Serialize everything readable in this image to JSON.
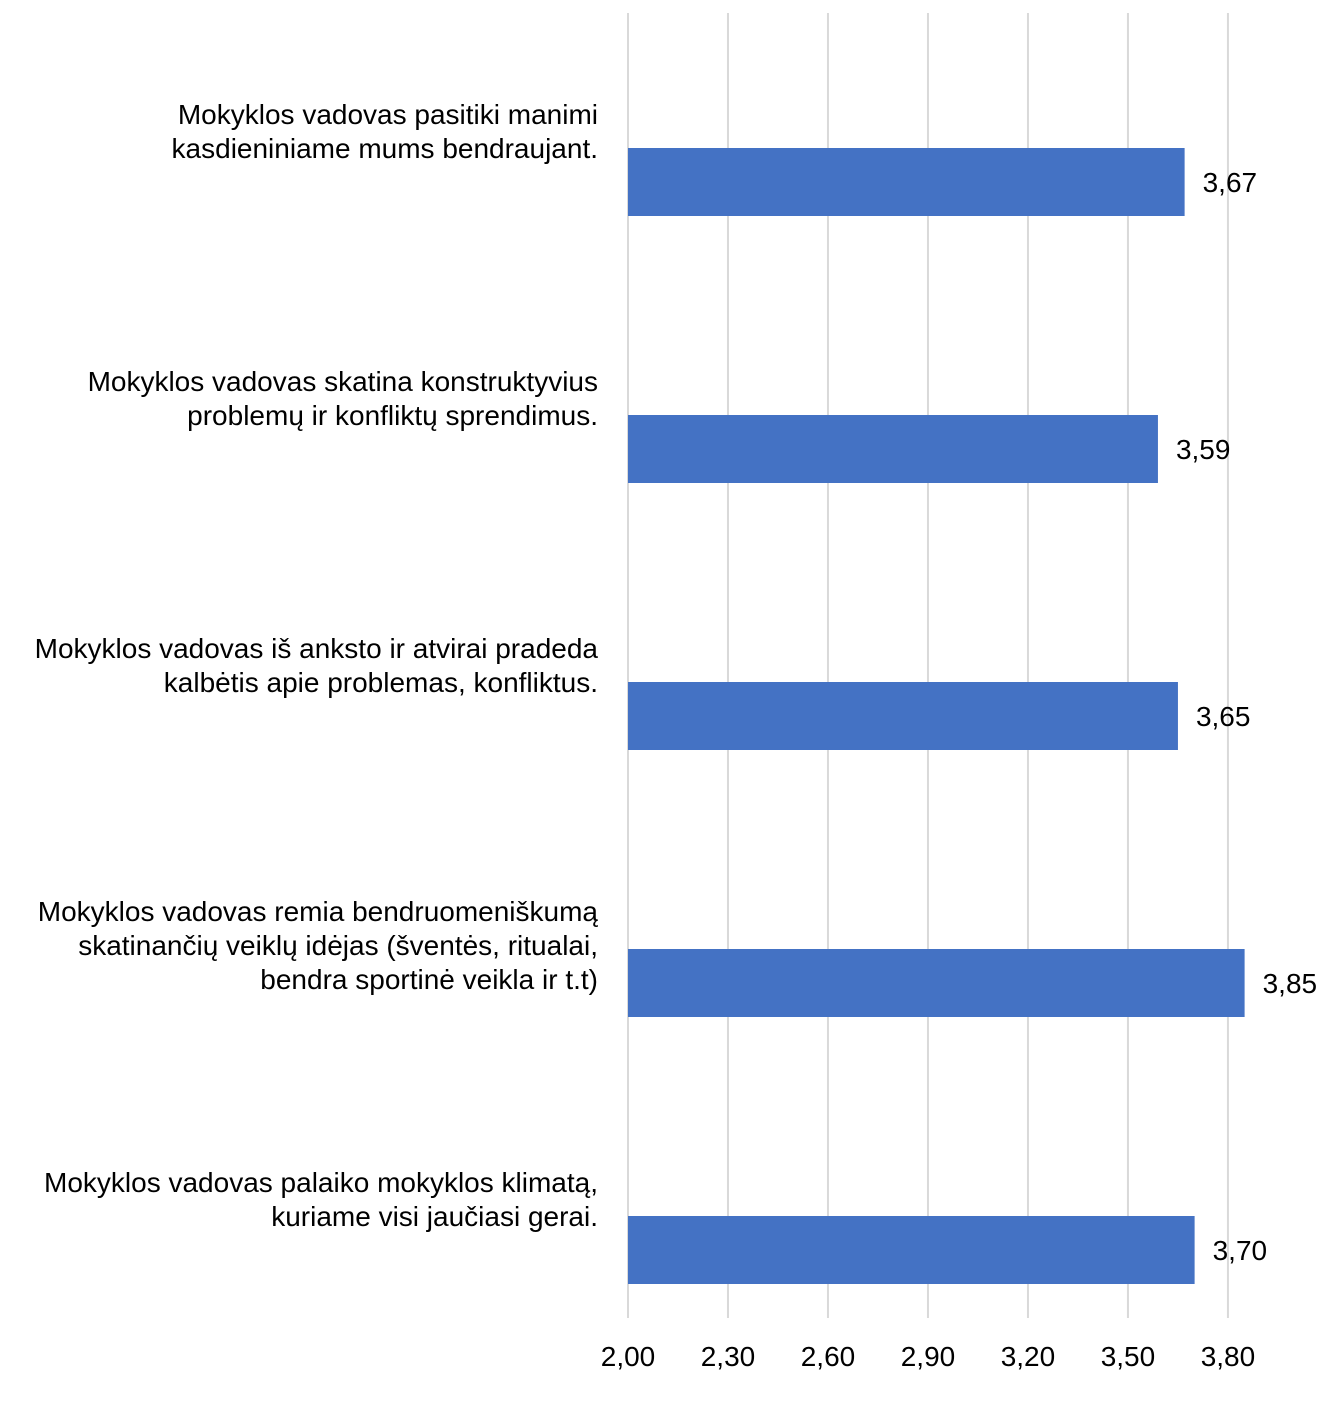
{
  "chart_data": {
    "type": "bar",
    "orientation": "horizontal",
    "categories": [
      [
        "Mokyklos vadovas pasitiki manimi",
        "kasdieniniame mums bendraujant."
      ],
      [
        "Mokyklos vadovas skatina konstruktyvius",
        "problemų ir konfliktų sprendimus."
      ],
      [
        "Mokyklos vadovas iš anksto ir atvirai pradeda",
        "kalbėtis apie problemas, konfliktus."
      ],
      [
        "Mokyklos vadovas remia bendruomeniškumą",
        "skatinančių veiklų idėjas (šventės, ritualai,",
        "bendra sportinė veikla ir t.t)"
      ],
      [
        "Mokyklos vadovas palaiko mokyklos klimatą,",
        "kuriame visi jaučiasi gerai."
      ]
    ],
    "values": [
      3.67,
      3.59,
      3.65,
      3.85,
      3.7
    ],
    "data_labels": [
      "3,67",
      "3,59",
      "3,65",
      "3,85",
      "3,70"
    ],
    "xlim": [
      2.0,
      3.9
    ],
    "xticks": [
      2.0,
      2.3,
      2.6,
      2.9,
      3.2,
      3.5,
      3.8
    ],
    "xtick_labels": [
      "2,00",
      "2,30",
      "2,60",
      "2,90",
      "3,20",
      "3,50",
      "3,80"
    ],
    "grid": true,
    "legend": "none",
    "bar_color": "#4472C4",
    "grid_color": "#D9D9D9",
    "title": "",
    "xlabel": "",
    "ylabel": ""
  }
}
